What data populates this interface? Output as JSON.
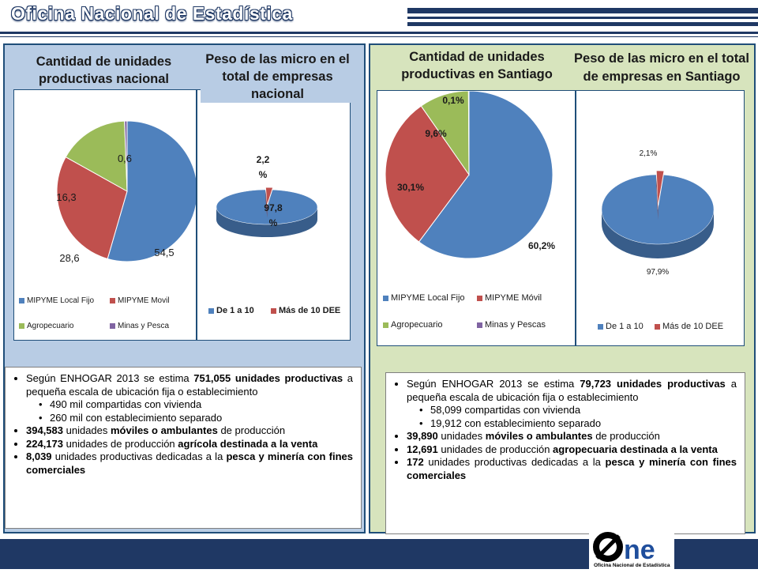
{
  "header": {
    "title": "Oficina Nacional de Estadística"
  },
  "left": {
    "chart1_title": "Cantidad de unidades productivas  nacional",
    "chart2_title": "Peso de las micro en el total de empresas nacional",
    "legend1": [
      "MIPYME Local Fijo",
      "MIPYME Movil",
      "Agropecuario",
      "Minas y Pesca"
    ],
    "legend2": [
      "De 1 a 10",
      "Más de 10 DEE"
    ],
    "bullets": {
      "b1_pre": "Según ENHOGAR 2013 se estima ",
      "b1_bold": "751,055 unidades productivas",
      "b1_post": " a pequeña escala de ubicación fija o establecimiento",
      "s1": "490 mil compartidas con vivienda",
      "s2": "260 mil con establecimiento separado",
      "b2_bold1": "394,583",
      "b2_mid": " unidades ",
      "b2_bold2": "móviles o ambulantes",
      "b2_post": " de producción",
      "b3_bold1": "224,173",
      "b3_mid": " unidades de producción ",
      "b3_bold2": "agrícola destinada a la venta",
      "b4_bold1": "8,039",
      "b4_mid": " unidades productivas dedicadas a la ",
      "b4_bold2": "pesca y minería con fines comerciales"
    }
  },
  "right": {
    "chart1_title": "Cantidad de unidades productivas en Santiago",
    "chart2_title": "Peso de las micro en el total de empresas en Santiago",
    "legend1": [
      "MIPYME Local Fijo",
      "MIPYME Móvil",
      "Agropecuario",
      "Minas y Pescas"
    ],
    "legend2": [
      "De 1 a 10",
      "Más de 10 DEE"
    ],
    "bullets": {
      "b1_pre": "Según ENHOGAR 2013 se estima ",
      "b1_bold": "79,723 unidades productivas",
      "b1_post": " a pequeña escala de ubicación fija o establecimiento",
      "s1": "58,099 compartidas con vivienda",
      "s2": "19,912 con establecimiento separado",
      "b2_bold1": "39,890",
      "b2_mid": " unidades ",
      "b2_bold2": "móviles o ambulantes",
      "b2_post": " de producción",
      "b3_bold1": "12,691",
      "b3_mid": " unidades de producción ",
      "b3_bold2": "agropecuaria destinada a la venta",
      "b4_bold1": "172",
      "b4_mid": " unidades productivas dedicadas a la ",
      "b4_bold2": "pesca y minería con fines comerciales"
    }
  },
  "logo": {
    "text": "one",
    "subtext": "Oficina Nacional de Estadística"
  },
  "colors": {
    "blue": "#4f81bd",
    "red": "#c0504d",
    "green": "#9bbb59",
    "purple": "#8064a2",
    "navy": "#1f3864"
  },
  "chart_data": [
    {
      "type": "pie",
      "title": "Cantidad de unidades productivas  nacional",
      "categories": [
        "MIPYME Local Fijo",
        "MIPYME Movil",
        "Agropecuario",
        "Minas y Pesca"
      ],
      "values": [
        54.5,
        28.6,
        16.3,
        0.6
      ],
      "labels": [
        "54,5",
        "28,6",
        "16,3",
        "0,6"
      ],
      "legend": "bottom"
    },
    {
      "type": "pie",
      "title": "Peso de las micro en el total de empresas nacional",
      "categories": [
        "De 1 a 10",
        "Más de 10 DEE"
      ],
      "values": [
        97.8,
        2.2
      ],
      "labels": [
        "97,8 %",
        "2,2 %"
      ],
      "legend": "bottom"
    },
    {
      "type": "pie",
      "title": "Cantidad de unidades productivas en Santiago",
      "categories": [
        "MIPYME Local Fijo",
        "MIPYME Móvil",
        "Agropecuario",
        "Minas y Pescas"
      ],
      "values": [
        60.2,
        30.1,
        9.6,
        0.1
      ],
      "labels": [
        "60,2%",
        "30,1%",
        "9,6%",
        "0,1%"
      ],
      "legend": "bottom"
    },
    {
      "type": "pie",
      "title": "Peso de las micro en el total de empresas en Santiago",
      "categories": [
        "De 1 a 10",
        "Más de 10 DEE"
      ],
      "values": [
        97.9,
        2.1
      ],
      "labels": [
        "97,9%",
        "2,1%"
      ],
      "legend": "bottom"
    }
  ]
}
